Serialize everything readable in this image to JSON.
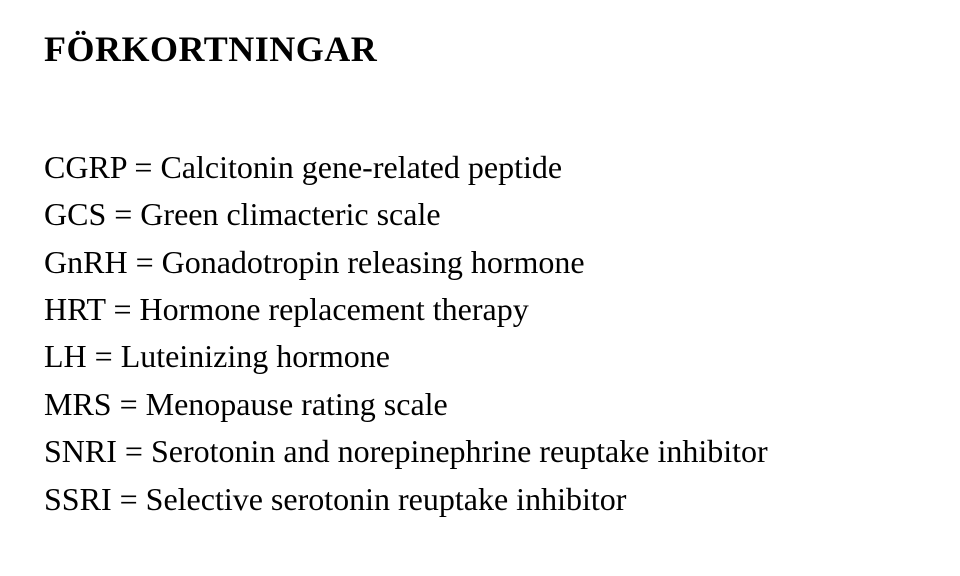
{
  "heading": "FÖRKORTNINGAR",
  "entries": [
    "CGRP = Calcitonin gene-related peptide",
    "GCS = Green climacteric scale",
    "GnRH = Gonadotropin releasing hormone",
    "HRT = Hormone replacement therapy",
    "LH = Luteinizing hormone",
    "MRS = Menopause rating scale",
    "SNRI = Serotonin and norepinephrine reuptake inhibitor",
    "SSRI = Selective serotonin reuptake inhibitor"
  ]
}
